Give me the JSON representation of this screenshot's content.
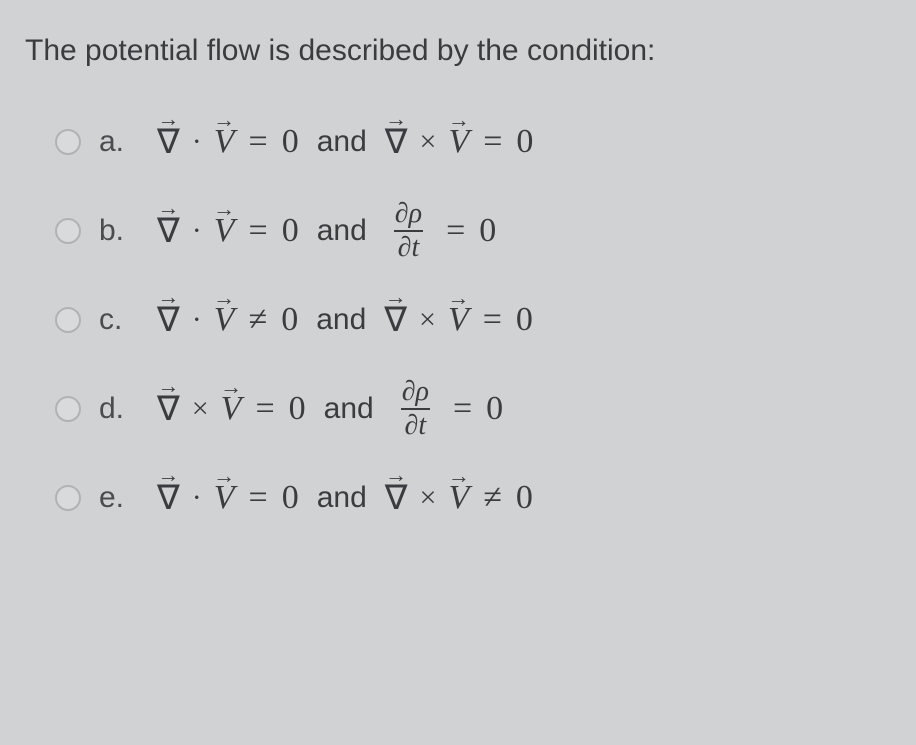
{
  "question": {
    "text": "The potential flow is described by the condition:",
    "fontsize": 30,
    "color": "#3a3c3f"
  },
  "symbols": {
    "nabla": "∇",
    "arrow": "→",
    "V": "V",
    "dot": "·",
    "times": "×",
    "eq": "=",
    "neq": "≠",
    "zero": "0",
    "and": "and",
    "partial_rho": "∂ρ",
    "partial_t": "∂t"
  },
  "options": [
    {
      "label": "a.",
      "parts": [
        {
          "type": "nabla"
        },
        {
          "type": "dot"
        },
        {
          "type": "vec",
          "sym": "V"
        },
        {
          "type": "eq"
        },
        {
          "type": "zero"
        },
        {
          "type": "and"
        },
        {
          "type": "nabla"
        },
        {
          "type": "times"
        },
        {
          "type": "vec",
          "sym": "V"
        },
        {
          "type": "eq"
        },
        {
          "type": "zero"
        }
      ]
    },
    {
      "label": "b.",
      "parts": [
        {
          "type": "nabla"
        },
        {
          "type": "dot"
        },
        {
          "type": "vec",
          "sym": "V"
        },
        {
          "type": "eq"
        },
        {
          "type": "zero"
        },
        {
          "type": "and"
        },
        {
          "type": "frac",
          "num": "∂ρ",
          "den": "∂t"
        },
        {
          "type": "eq"
        },
        {
          "type": "zero"
        }
      ]
    },
    {
      "label": "c.",
      "parts": [
        {
          "type": "nabla"
        },
        {
          "type": "dot"
        },
        {
          "type": "vec",
          "sym": "V"
        },
        {
          "type": "neq"
        },
        {
          "type": "zero"
        },
        {
          "type": "and"
        },
        {
          "type": "nabla"
        },
        {
          "type": "times"
        },
        {
          "type": "vec",
          "sym": "V"
        },
        {
          "type": "eq"
        },
        {
          "type": "zero"
        }
      ]
    },
    {
      "label": "d.",
      "parts": [
        {
          "type": "nabla"
        },
        {
          "type": "times"
        },
        {
          "type": "vec",
          "sym": "V"
        },
        {
          "type": "eq"
        },
        {
          "type": "zero"
        },
        {
          "type": "and"
        },
        {
          "type": "frac",
          "num": "∂ρ",
          "den": "∂t"
        },
        {
          "type": "eq"
        },
        {
          "type": "zero"
        }
      ]
    },
    {
      "label": "e.",
      "parts": [
        {
          "type": "nabla"
        },
        {
          "type": "dot"
        },
        {
          "type": "vec",
          "sym": "V"
        },
        {
          "type": "eq"
        },
        {
          "type": "zero"
        },
        {
          "type": "and"
        },
        {
          "type": "nabla"
        },
        {
          "type": "times"
        },
        {
          "type": "vec",
          "sym": "V"
        },
        {
          "type": "neq"
        },
        {
          "type": "zero"
        }
      ]
    }
  ],
  "colors": {
    "background": "#d0d2d4",
    "text": "#4a4c4f",
    "math": "#3a3c3f",
    "radio_border": "#b0b2b5",
    "radio_bg": "#d8dadc"
  }
}
